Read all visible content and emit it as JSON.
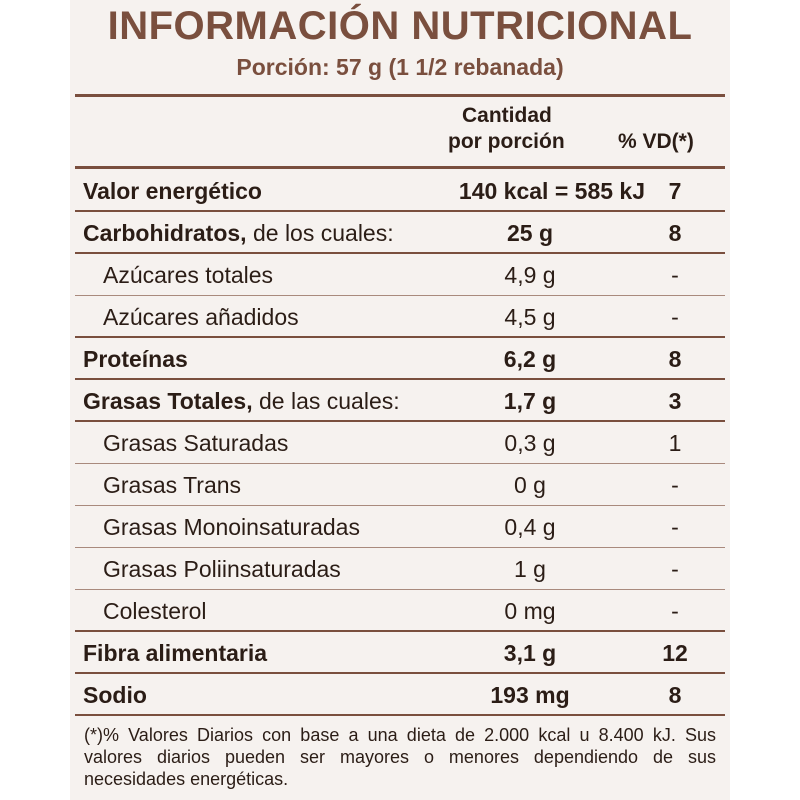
{
  "label": {
    "title": "INFORMACIÓN NUTRICIONAL",
    "portion": "Porción: 57 g (1 1/2 rebanada)",
    "columns": {
      "amount_line1": "Cantidad",
      "amount_line2": "por porción",
      "vd": "% VD(*)"
    },
    "rows": [
      {
        "name_bold": "Valor energético",
        "name_rest": "",
        "amount": "140 kcal = 585 kJ",
        "vd": "7",
        "major": true
      },
      {
        "name_bold": "Carbohidratos,",
        "name_rest": " de los cuales:",
        "amount": "25 g",
        "vd": "8",
        "major": true
      },
      {
        "name_bold": "",
        "name_rest": "Azúcares totales",
        "amount": "4,9 g",
        "vd": "-",
        "major": false
      },
      {
        "name_bold": "",
        "name_rest": "Azúcares añadidos",
        "amount": "4,5 g",
        "vd": "-",
        "major": false
      },
      {
        "name_bold": "Proteínas",
        "name_rest": "",
        "amount": "6,2 g",
        "vd": "8",
        "major": true
      },
      {
        "name_bold": "Grasas Totales,",
        "name_rest": " de las cuales:",
        "amount": "1,7 g",
        "vd": "3",
        "major": true
      },
      {
        "name_bold": "",
        "name_rest": "Grasas Saturadas",
        "amount": "0,3 g",
        "vd": "1",
        "major": false
      },
      {
        "name_bold": "",
        "name_rest": "Grasas Trans",
        "amount": "0 g",
        "vd": "-",
        "major": false
      },
      {
        "name_bold": "",
        "name_rest": "Grasas Monoinsaturadas",
        "amount": "0,4 g",
        "vd": "-",
        "major": false
      },
      {
        "name_bold": "",
        "name_rest": "Grasas Poliinsaturadas",
        "amount": "1 g",
        "vd": "-",
        "major": false
      },
      {
        "name_bold": "",
        "name_rest": "Colesterol",
        "amount": "0 mg",
        "vd": "-",
        "major": false
      },
      {
        "name_bold": "Fibra alimentaria",
        "name_rest": "",
        "amount": "3,1 g",
        "vd": "12",
        "major": true
      },
      {
        "name_bold": "Sodio",
        "name_rest": "",
        "amount": "193 mg",
        "vd": "8",
        "major": true
      }
    ],
    "footnote": "(*)% Valores Diarios con base a una dieta de 2.000 kcal u 8.400 kJ. Sus valores diarios pueden ser mayores o menores dependiendo de sus necesidades energéticas."
  },
  "colors": {
    "accent": "#7a4f3e",
    "background": "#f6f2ef",
    "text": "#2b1d16"
  }
}
